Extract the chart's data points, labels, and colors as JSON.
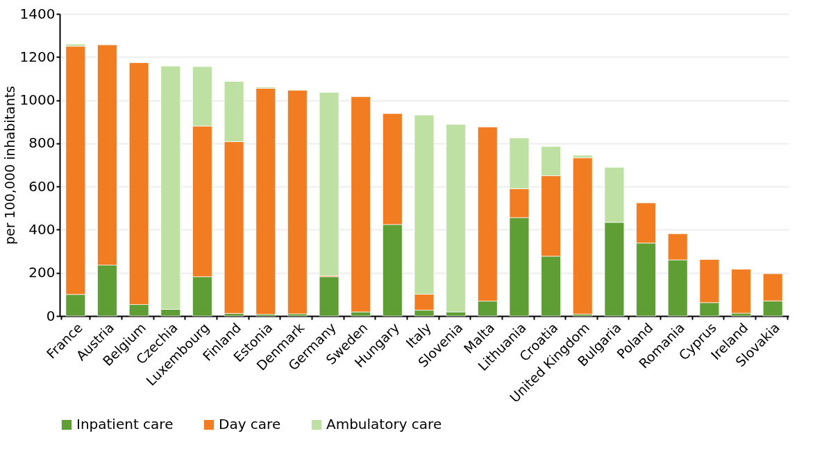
{
  "chart_data": {
    "type": "bar",
    "stacked": true,
    "ylabel": "per 100,000 inhabitants",
    "categories": [
      "France",
      "Austria",
      "Belgium",
      "Czechia",
      "Luxembourg",
      "Finland",
      "Estonia",
      "Denmark",
      "Germany",
      "Sweden",
      "Hungary",
      "Italy",
      "Slovenia",
      "Malta",
      "Lithuania",
      "Croatia",
      "United Kingdom",
      "Bulgaria",
      "Poland",
      "Romania",
      "Cyprus",
      "Ireland",
      "Slovakia"
    ],
    "series": [
      {
        "name": "Inpatient care",
        "color": "#5f9e35",
        "values": [
          100,
          236,
          53,
          31,
          182,
          12,
          8,
          10,
          182,
          19,
          424,
          27,
          19,
          69,
          456,
          277,
          9,
          434,
          338,
          260,
          62,
          13,
          70
        ]
      },
      {
        "name": "Day care",
        "color": "#f27c22",
        "values": [
          1150,
          1020,
          1121,
          null,
          698,
          796,
          1047,
          1036,
          5,
          997,
          514,
          74,
          0,
          807,
          134,
          373,
          724,
          0,
          186,
          121,
          200,
          204,
          126
        ]
      },
      {
        "name": "Ambulatory care",
        "color": "#bfe0a3",
        "values": [
          10,
          0,
          0,
          1127,
          276,
          279,
          6,
          0,
          849,
          0,
          0,
          830,
          869,
          0,
          235,
          136,
          12,
          255,
          0,
          0,
          0,
          0,
          0
        ]
      }
    ],
    "ylim": [
      0,
      1400
    ],
    "yticks": [
      0,
      200,
      400,
      600,
      800,
      1000,
      1200,
      1400
    ],
    "grid": "y",
    "legend": "bottom"
  }
}
